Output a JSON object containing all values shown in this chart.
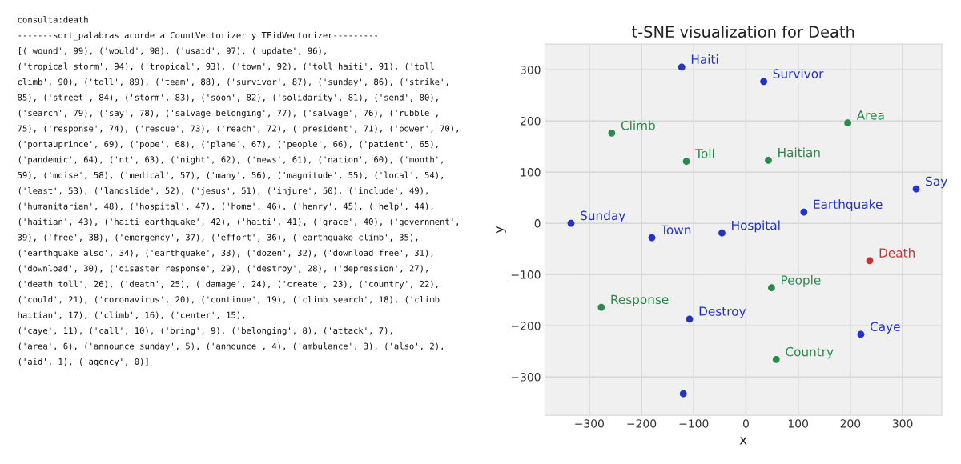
{
  "chart_data": {
    "type": "scatter",
    "title": "t-SNE visualization for Death",
    "xlabel": "x",
    "ylabel": "y",
    "xlim": [
      -385,
      375
    ],
    "ylim": [
      -375,
      350
    ],
    "xticks": [
      -300,
      -200,
      -100,
      0,
      100,
      200,
      300
    ],
    "yticks": [
      -300,
      -200,
      -100,
      0,
      100,
      200,
      300
    ],
    "grid": true,
    "marker": "circle",
    "series": [
      {
        "color": "#2233cc",
        "x": [
          -123,
          34,
          326,
          111,
          -335,
          -180,
          -46,
          -108,
          220,
          -120
        ],
        "values": [
          305,
          277,
          67,
          22,
          0,
          -28,
          -19,
          -187,
          -217,
          -333
        ]
      },
      {
        "color": "#2a8a4a",
        "x": [
          -257,
          -114,
          43,
          195,
          49,
          -277,
          58
        ],
        "values": [
          176,
          121,
          123,
          196,
          -126,
          -164,
          -266
        ]
      },
      {
        "color": "#c83232",
        "x": [
          237
        ],
        "values": [
          -73
        ]
      }
    ],
    "annotations": [
      {
        "text": "Haiti",
        "x": -123,
        "y": 305
      },
      {
        "text": "Survivor",
        "x": 34,
        "y": 277
      },
      {
        "text": "Say",
        "x": 326,
        "y": 67
      },
      {
        "text": "Earthquake",
        "x": 111,
        "y": 22
      },
      {
        "text": "Sunday",
        "x": -335,
        "y": 0
      },
      {
        "text": "Town",
        "x": -180,
        "y": -28
      },
      {
        "text": "Hospital",
        "x": -46,
        "y": -19
      },
      {
        "text": "Destroy",
        "x": -108,
        "y": -187
      },
      {
        "text": "Caye",
        "x": 220,
        "y": -217
      },
      {
        "text": "Climb",
        "x": -257,
        "y": 176
      },
      {
        "text": "Toll",
        "x": -114,
        "y": 121
      },
      {
        "text": "Haitian",
        "x": 43,
        "y": 123
      },
      {
        "text": "Area",
        "x": 195,
        "y": 196
      },
      {
        "text": "People",
        "x": 49,
        "y": -126
      },
      {
        "text": "Response",
        "x": -277,
        "y": -164
      },
      {
        "text": "Country",
        "x": 58,
        "y": -266
      },
      {
        "text": "Death",
        "x": 237,
        "y": -73
      },
      "consulta:death",
      "-------sort_palabras acorde a CountVectorizer y TFidVectorizer---------",
      "[('wound', 99), ('would', 98), ('usaid', 97), ('update', 96),",
      "('tropical storm', 94), ('tropical', 93), ('town', 92), ('toll haiti', 91), ('toll",
      "climb', 90), ('toll', 89), ('team', 88), ('survivor', 87), ('sunday', 86), ('strike',",
      "85), ('street', 84), ('storm', 83), ('soon', 82), ('solidarity', 81), ('send', 80),",
      "('search', 79), ('say', 78), ('salvage belonging', 77), ('salvage', 76), ('rubble',",
      "75), ('response', 74), ('rescue', 73), ('reach', 72), ('president', 71), ('power', 70),",
      "('portauprince', 69), ('pope', 68), ('plane', 67), ('people', 66), ('patient', 65),",
      "('pandemic', 64), ('nt', 63), ('night', 62), ('news', 61), ('nation', 60), ('month',",
      "59), ('moise', 58), ('medical', 57), ('many', 56), ('magnitude', 55), ('local', 54),",
      "('least', 53), ('landslide', 52), ('jesus', 51), ('injure', 50), ('include', 49),",
      "('humanitarian', 48), ('hospital', 47), ('home', 46), ('henry', 45), ('help', 44),",
      "('haitian', 43), ('haiti earthquake', 42), ('haiti', 41), ('grace', 40), ('government',",
      "39), ('free', 38), ('emergency', 37), ('effort', 36), ('earthquake climb', 35),",
      "('earthquake also', 34), ('earthquake', 33), ('dozen', 32), ('download free', 31),",
      "('download', 30), ('disaster response', 29), ('destroy', 28), ('depression', 27),",
      "('death toll', 26), ('death', 25), ('damage', 24), ('create', 23), ('country', 22),",
      "('could', 21), ('coronavirus', 20), ('continue', 19), ('climb search', 18), ('climb",
      "haitian', 17), ('climb', 16), ('center', 15),",
      "('caye', 11), ('call', 10), ('bring', 9), ('belonging', 8), ('attack', 7),",
      "('area', 6), ('announce sunday', 5), ('announce', 4), ('ambulance', 3), ('also', 2),",
      "('aid', 1), ('agency', 0)]"
    ]
  }
}
